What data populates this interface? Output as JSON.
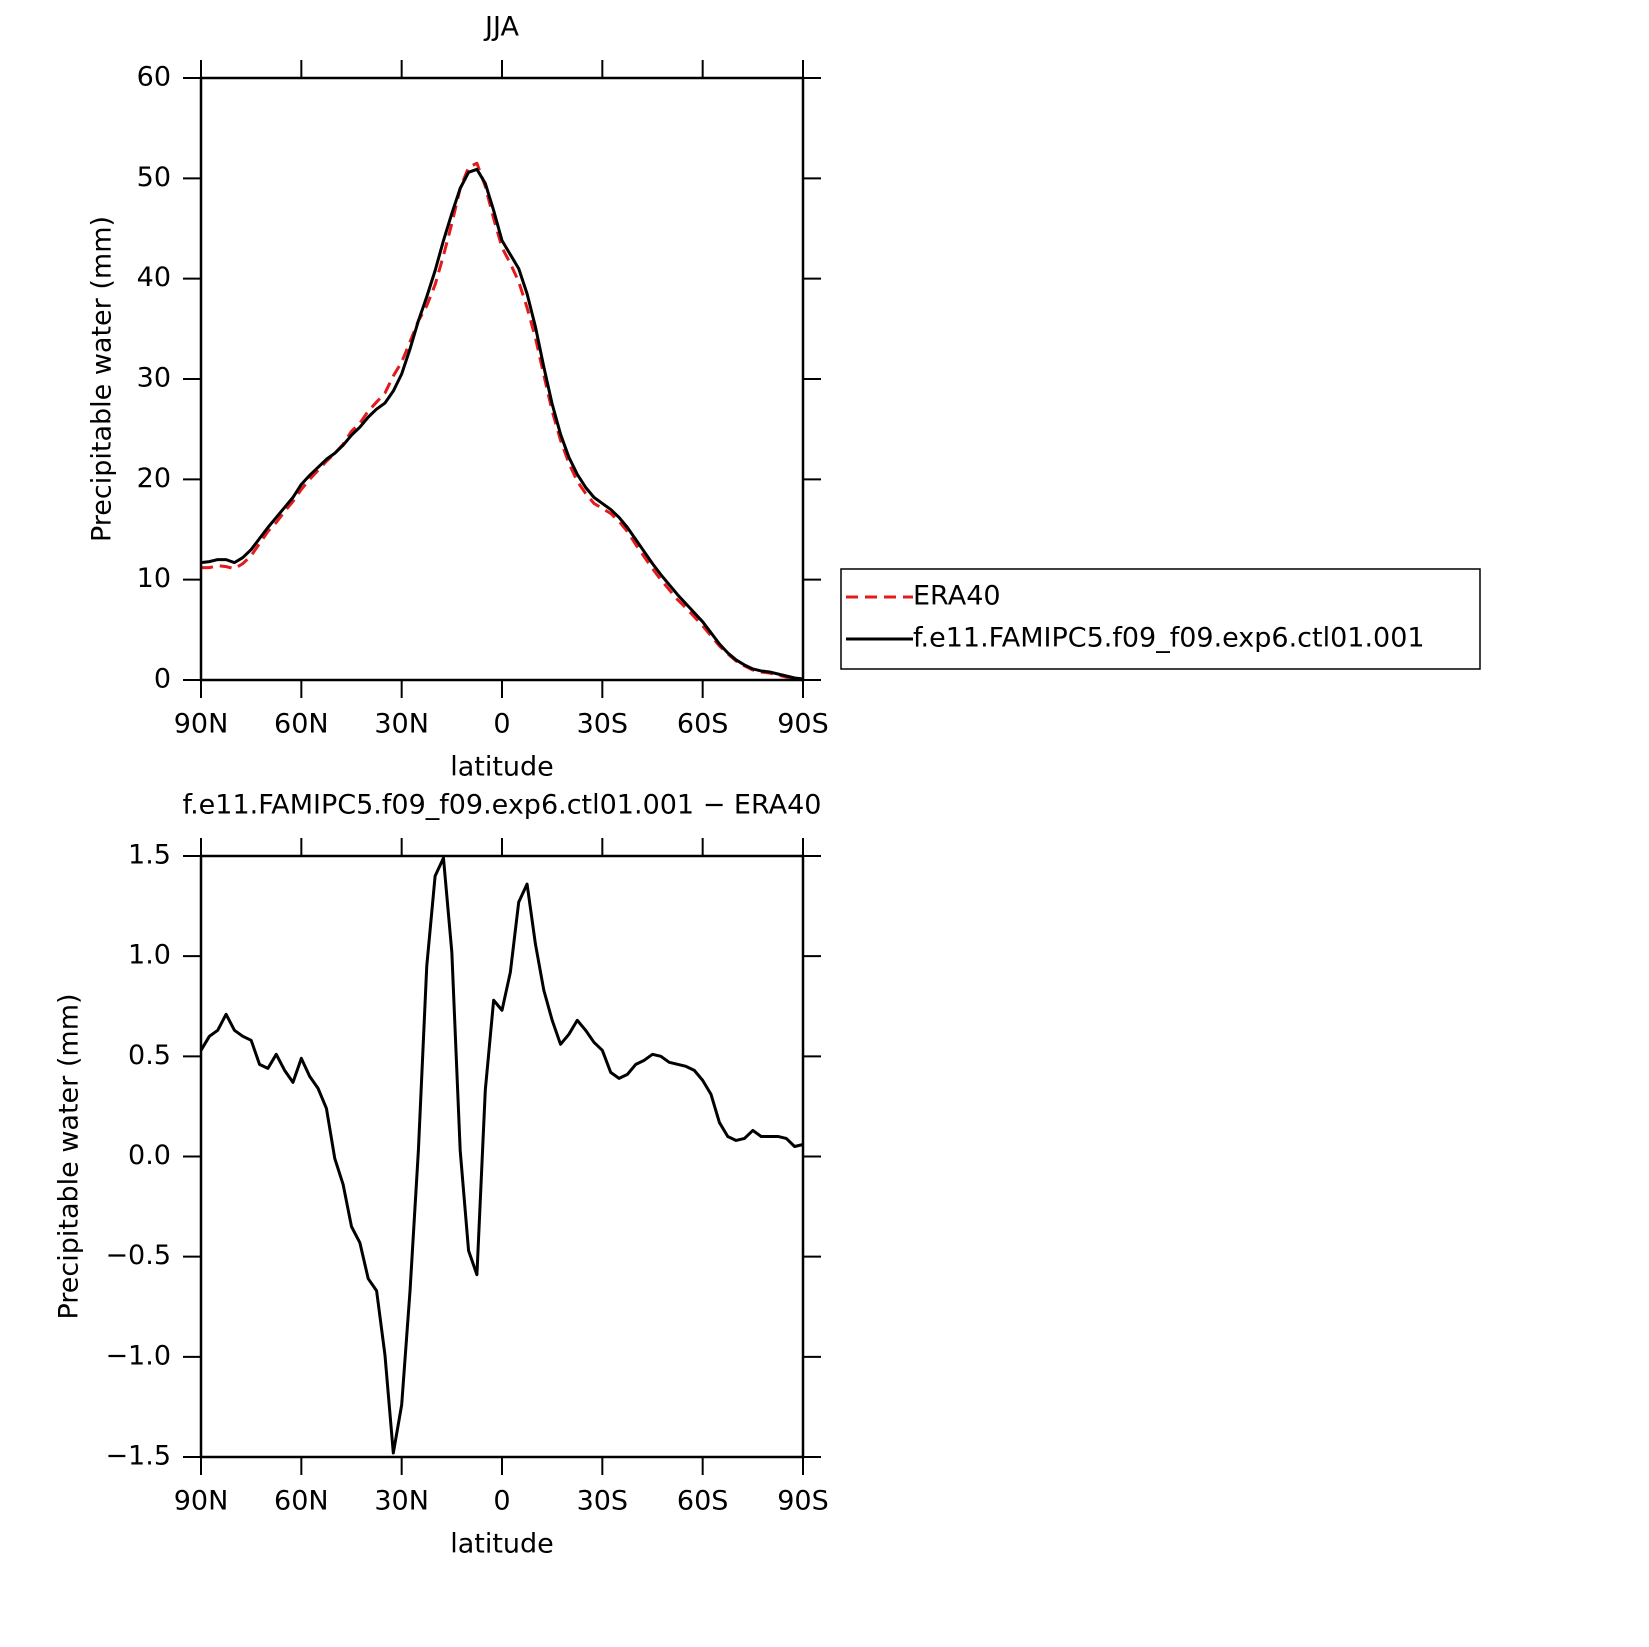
{
  "chart_data": [
    {
      "type": "line",
      "title": "JJA",
      "xlabel": "latitude",
      "ylabel": "Precipitable water (mm)",
      "x": [
        90,
        87.5,
        85,
        82.5,
        80,
        77.5,
        75,
        72.5,
        70,
        67.5,
        65,
        62.5,
        60,
        57.5,
        55,
        52.5,
        50,
        47.5,
        45,
        42.5,
        40,
        37.5,
        35,
        32.5,
        30,
        27.5,
        25,
        22.5,
        20,
        17.5,
        15,
        12.5,
        10,
        7.5,
        5,
        2.5,
        0,
        -2.5,
        -5,
        -7.5,
        -10,
        -12.5,
        -15,
        -17.5,
        -20,
        -22.5,
        -25,
        -27.5,
        -30,
        -32.5,
        -35,
        -37.5,
        -40,
        -42.5,
        -45,
        -47.5,
        -50,
        -52.5,
        -55,
        -57.5,
        -60,
        -62.5,
        -65,
        -67.5,
        -70,
        -72.5,
        -75,
        -77.5,
        -80,
        -82.5,
        -85,
        -87.5,
        -90
      ],
      "xlim": [
        90,
        -90
      ],
      "xticks": [
        {
          "value": 90,
          "label": "90N"
        },
        {
          "value": 60,
          "label": "60N"
        },
        {
          "value": 30,
          "label": "30N"
        },
        0,
        {
          "value": -30,
          "label": "30S"
        },
        {
          "value": -60,
          "label": "60S"
        },
        {
          "value": -90,
          "label": "90S"
        }
      ],
      "ylim": [
        0,
        60
      ],
      "yticks": [
        0,
        10,
        20,
        30,
        40,
        50,
        60
      ],
      "legend": "right",
      "series": [
        {
          "name": "ERA40",
          "color": "#e41a1c",
          "linestyle": "dashed",
          "values": [
            11.2,
            11.2,
            11.4,
            11.3,
            11.1,
            11.6,
            12.4,
            13.6,
            14.8,
            15.7,
            16.8,
            17.8,
            19.0,
            20.0,
            20.9,
            21.8,
            22.6,
            23.5,
            24.8,
            25.6,
            26.8,
            27.7,
            28.6,
            30.3,
            31.7,
            33.7,
            35.8,
            37.3,
            39.4,
            42.3,
            45.5,
            49.0,
            51.1,
            51.5,
            49.2,
            46.0,
            43.1,
            41.5,
            39.7,
            37.1,
            34.1,
            30.4,
            26.8,
            23.9,
            21.6,
            19.8,
            18.6,
            17.6,
            17.1,
            16.6,
            15.8,
            14.8,
            13.5,
            12.3,
            11.1,
            10.0,
            9.0,
            8.0,
            7.2,
            6.3,
            5.4,
            4.4,
            3.4,
            2.6,
            1.9,
            1.4,
            1.0,
            0.8,
            0.7,
            0.5,
            0.3,
            0.2,
            0.0
          ]
        },
        {
          "name": "f.e11.FAMIPC5.f09_f09.exp6.ctl01.001",
          "color": "#000000",
          "linestyle": "solid",
          "values": [
            11.7,
            11.8,
            12.0,
            12.0,
            11.7,
            12.2,
            13.0,
            14.1,
            15.2,
            16.2,
            17.2,
            18.2,
            19.5,
            20.4,
            21.2,
            22.0,
            22.6,
            23.4,
            24.4,
            25.2,
            26.2,
            27.0,
            27.6,
            28.8,
            30.5,
            33.0,
            35.8,
            38.2,
            40.8,
            43.8,
            46.5,
            49.0,
            50.6,
            50.9,
            49.5,
            46.8,
            43.8,
            42.4,
            41.0,
            38.5,
            35.2,
            31.2,
            27.5,
            24.5,
            22.2,
            20.5,
            19.2,
            18.2,
            17.6,
            17.0,
            16.2,
            15.2,
            14.0,
            12.8,
            11.6,
            10.5,
            9.5,
            8.5,
            7.6,
            6.7,
            5.8,
            4.7,
            3.6,
            2.7,
            2.0,
            1.5,
            1.1,
            0.9,
            0.8,
            0.6,
            0.4,
            0.2,
            0.1
          ]
        }
      ]
    },
    {
      "type": "line",
      "title": "f.e11.FAMIPC5.f09_f09.exp6.ctl01.001 − ERA40",
      "xlabel": "latitude",
      "ylabel": "Precipitable water (mm)",
      "x": [
        90,
        87.5,
        85,
        82.5,
        80,
        77.5,
        75,
        72.5,
        70,
        67.5,
        65,
        62.5,
        60,
        57.5,
        55,
        52.5,
        50,
        47.5,
        45,
        42.5,
        40,
        37.5,
        35,
        32.5,
        30,
        27.5,
        25,
        22.5,
        20,
        17.5,
        15,
        12.5,
        10,
        7.5,
        5,
        2.5,
        0,
        -2.5,
        -5,
        -7.5,
        -10,
        -12.5,
        -15,
        -17.5,
        -20,
        -22.5,
        -25,
        -27.5,
        -30,
        -32.5,
        -35,
        -37.5,
        -40,
        -42.5,
        -45,
        -47.5,
        -50,
        -52.5,
        -55,
        -57.5,
        -60,
        -62.5,
        -65,
        -67.5,
        -70,
        -72.5,
        -75,
        -77.5,
        -80,
        -82.5,
        -85,
        -87.5,
        -90
      ],
      "xlim": [
        90,
        -90
      ],
      "xticks": [
        {
          "value": 90,
          "label": "90N"
        },
        {
          "value": 60,
          "label": "60N"
        },
        {
          "value": 30,
          "label": "30N"
        },
        0,
        {
          "value": -30,
          "label": "30S"
        },
        {
          "value": -60,
          "label": "60S"
        },
        {
          "value": -90,
          "label": "90S"
        }
      ],
      "ylim": [
        -1.5,
        1.5
      ],
      "yticks": [
        {
          "value": -1.5,
          "label": "−1.5"
        },
        {
          "value": -1.0,
          "label": "−1.0"
        },
        {
          "value": -0.5,
          "label": "−0.5"
        },
        {
          "value": 0,
          "label": "0.0"
        },
        0.5,
        {
          "value": 1.0,
          "label": "1.0"
        },
        1.5
      ],
      "series": [
        {
          "color": "#000000",
          "linestyle": "solid",
          "values": [
            0.53,
            0.6,
            0.63,
            0.71,
            0.63,
            0.6,
            0.58,
            0.46,
            0.44,
            0.51,
            0.43,
            0.37,
            0.49,
            0.4,
            0.34,
            0.24,
            -0.01,
            -0.14,
            -0.35,
            -0.43,
            -0.61,
            -0.67,
            -0.99,
            -1.48,
            -1.24,
            -0.67,
            0.03,
            0.95,
            1.4,
            1.49,
            1.02,
            0.03,
            -0.47,
            -0.59,
            0.33,
            0.78,
            0.73,
            0.92,
            1.27,
            1.36,
            1.06,
            0.83,
            0.68,
            0.56,
            0.61,
            0.68,
            0.63,
            0.57,
            0.53,
            0.42,
            0.39,
            0.41,
            0.46,
            0.48,
            0.51,
            0.5,
            0.47,
            0.46,
            0.45,
            0.43,
            0.38,
            0.31,
            0.17,
            0.1,
            0.08,
            0.09,
            0.13,
            0.1,
            0.1,
            0.1,
            0.09,
            0.05,
            0.06
          ]
        }
      ]
    }
  ]
}
